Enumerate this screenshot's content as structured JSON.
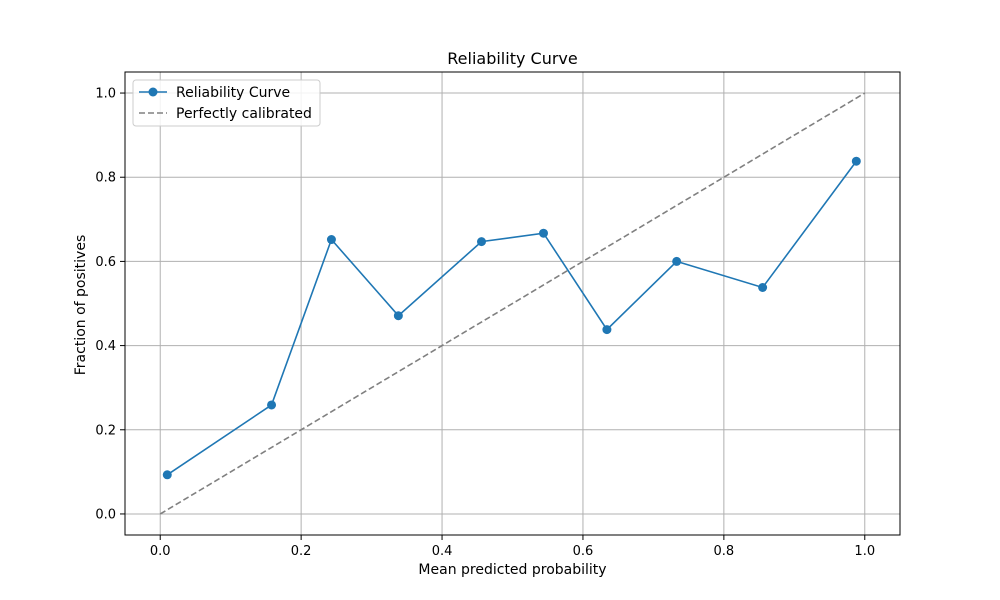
{
  "chart_data": {
    "type": "line",
    "title": "Reliability Curve",
    "xlabel": "Mean predicted probability",
    "ylabel": "Fraction of positives",
    "xlim": [
      -0.05,
      1.05
    ],
    "ylim": [
      -0.05,
      1.05
    ],
    "x_ticks": [
      0.0,
      0.2,
      0.4,
      0.6,
      0.8,
      1.0
    ],
    "y_ticks": [
      0.0,
      0.2,
      0.4,
      0.6,
      0.8,
      1.0
    ],
    "x_tick_labels": [
      "0.0",
      "0.2",
      "0.4",
      "0.6",
      "0.8",
      "1.0"
    ],
    "y_tick_labels": [
      "0.0",
      "0.2",
      "0.4",
      "0.6",
      "0.8",
      "1.0"
    ],
    "grid": true,
    "legend_position": "top-left",
    "series": [
      {
        "name": "Reliability Curve",
        "color": "#1f77b4",
        "style": "solid",
        "marker": "circle",
        "x": [
          0.01,
          0.158,
          0.243,
          0.338,
          0.456,
          0.544,
          0.634,
          0.733,
          0.855,
          0.988
        ],
        "y": [
          0.093,
          0.259,
          0.652,
          0.471,
          0.647,
          0.667,
          0.438,
          0.6,
          0.538,
          0.838
        ]
      },
      {
        "name": "Perfectly calibrated",
        "color": "#808080",
        "style": "dashed",
        "marker": "none",
        "x": [
          0.0,
          1.0
        ],
        "y": [
          0.0,
          1.0
        ]
      }
    ]
  }
}
